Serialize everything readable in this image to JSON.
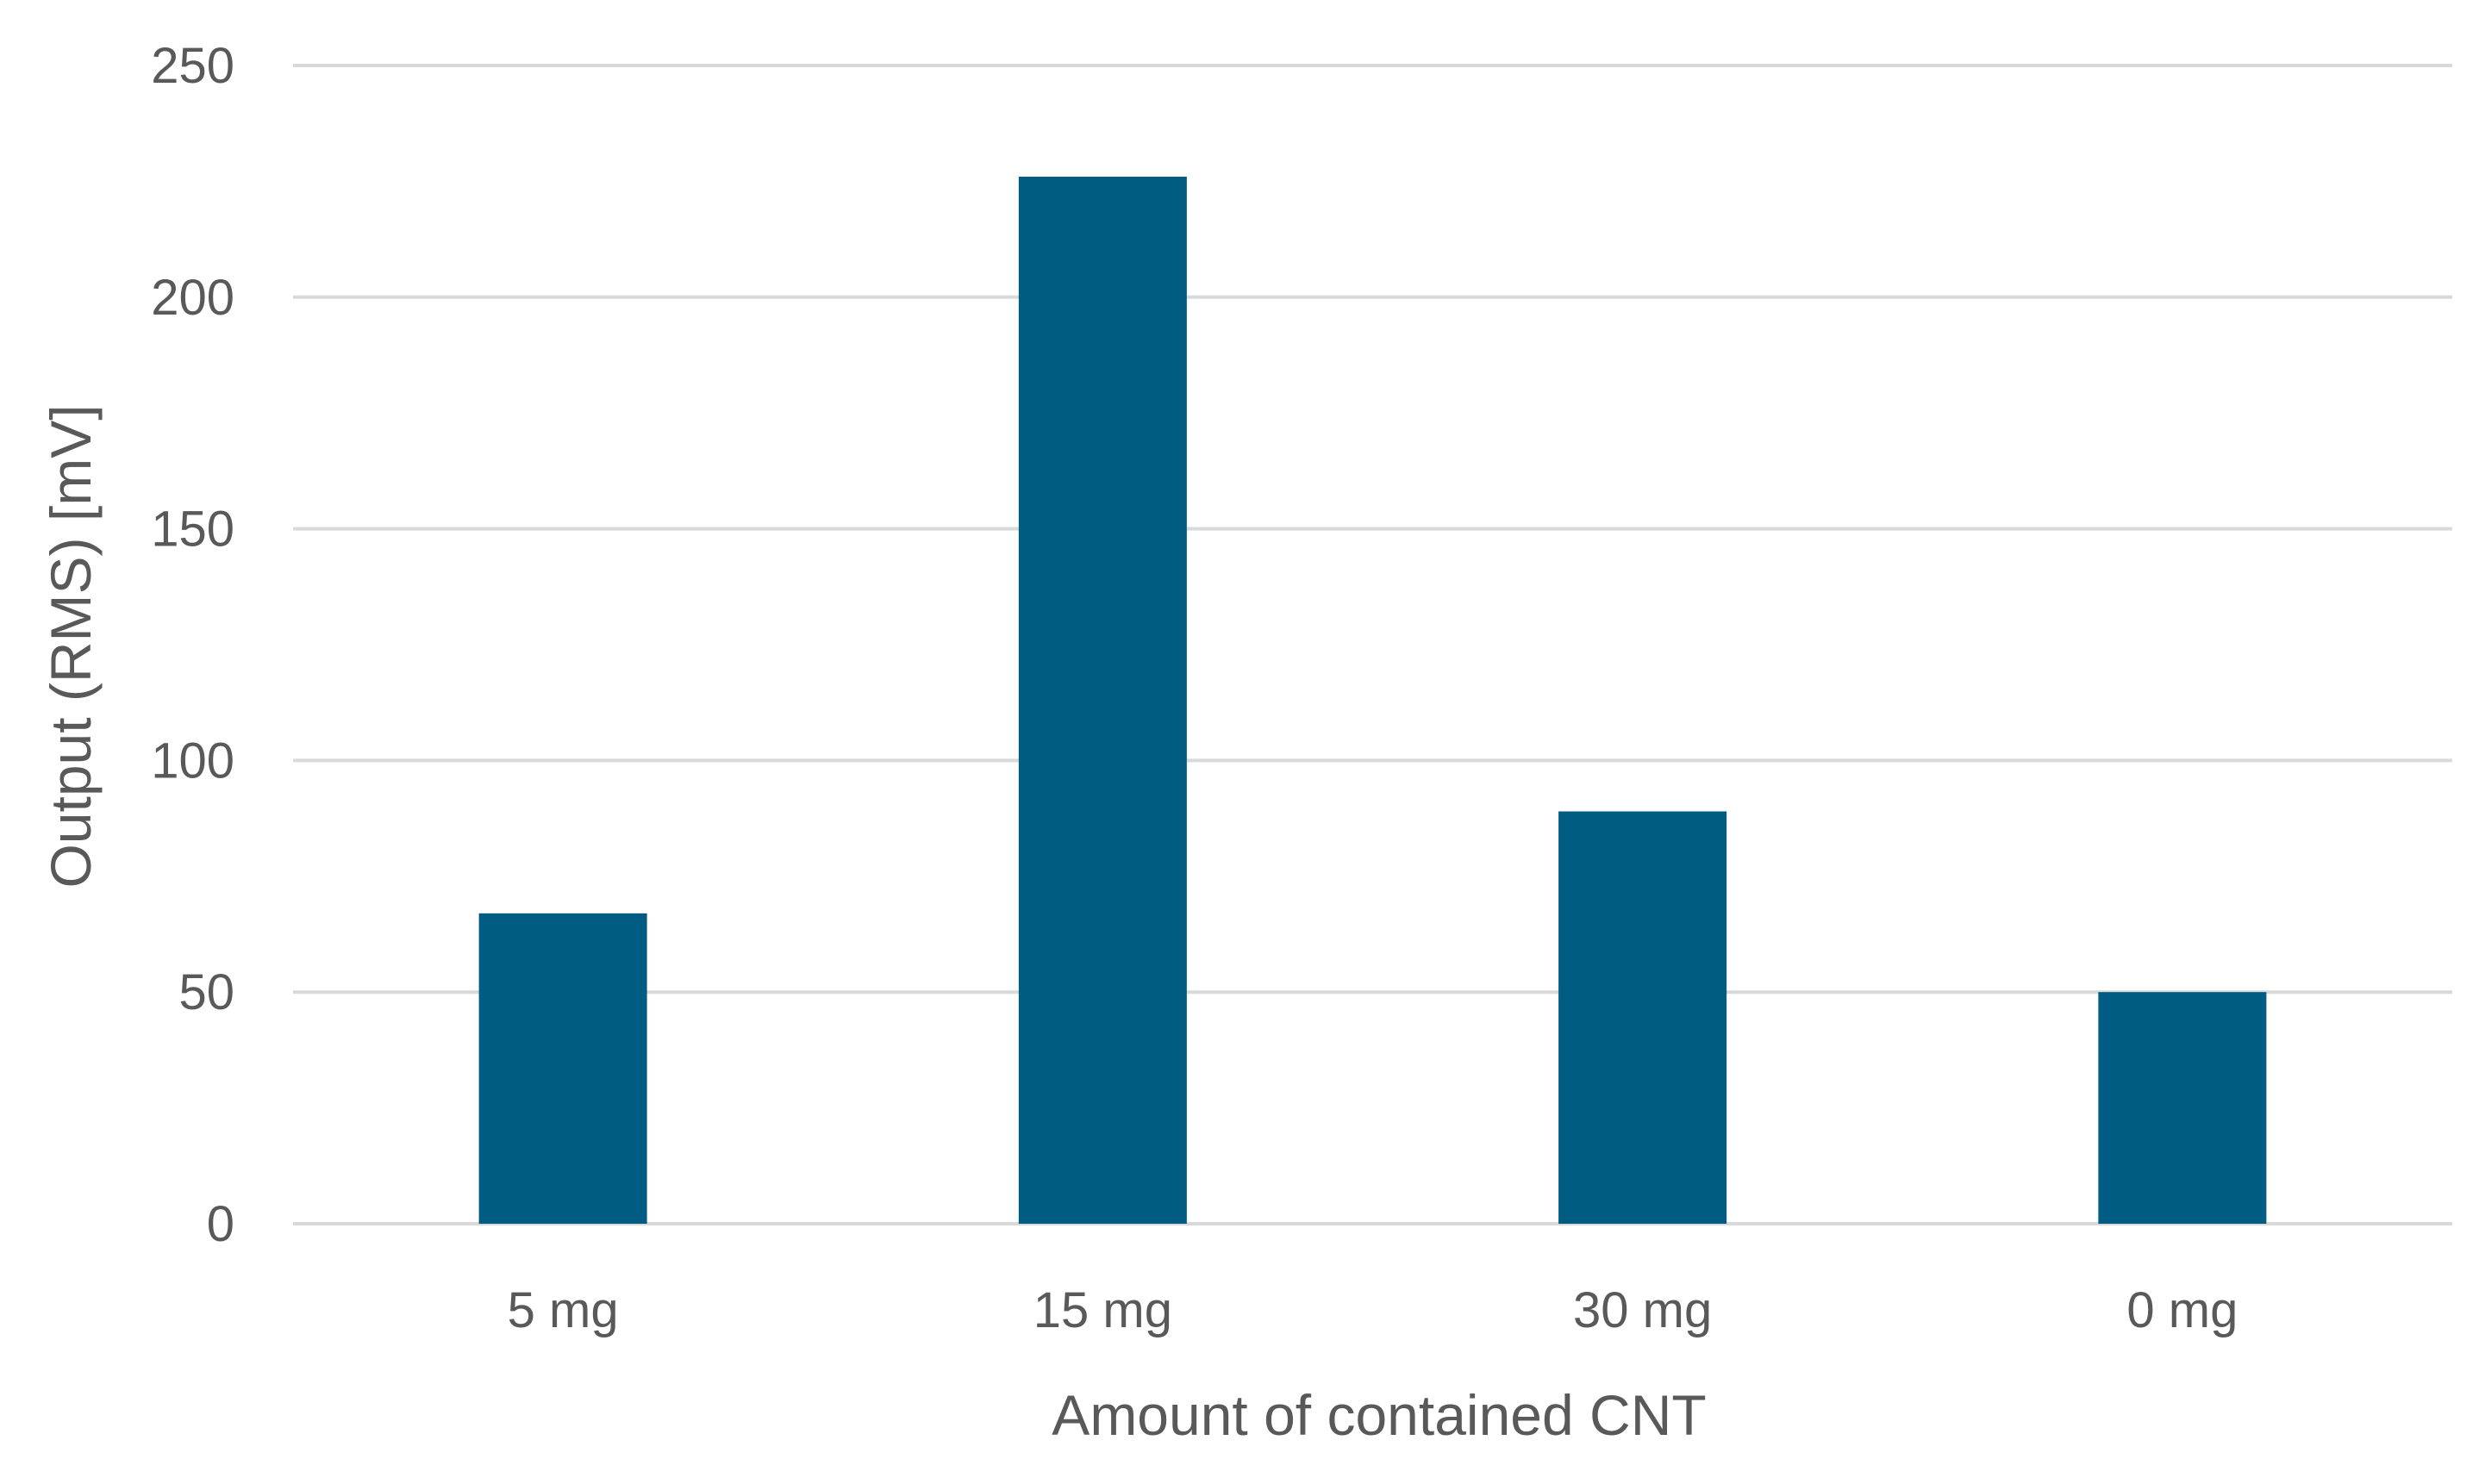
{
  "chart_data": {
    "type": "bar",
    "title": "",
    "xlabel": "Amount of contained CNT",
    "ylabel": "Output (RMS) [mV]",
    "categories": [
      "5 mg",
      "15 mg",
      "30 mg",
      "0 mg"
    ],
    "values": [
      67,
      226,
      89,
      50
    ],
    "ylim": [
      0,
      250
    ],
    "yticks": [
      0,
      50,
      100,
      150,
      200,
      250
    ],
    "ytick_labels": [
      "0",
      "50",
      "100",
      "150",
      "200",
      "250"
    ],
    "grid": true,
    "legend": "none",
    "bar_color": "#005C83",
    "grid_color": "#D9D9D9",
    "text_color": "#595959"
  }
}
